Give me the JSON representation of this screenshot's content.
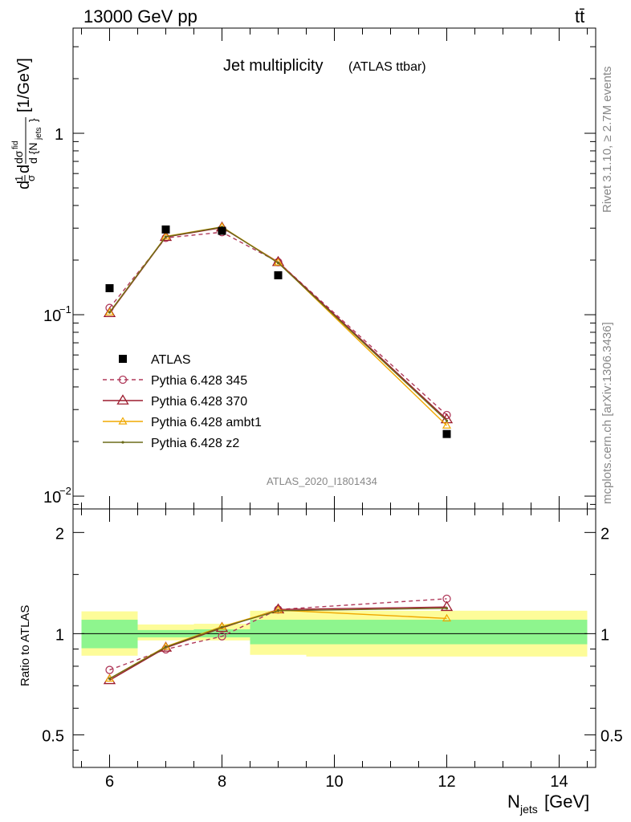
{
  "header": {
    "left": "13000 GeV pp",
    "right": "tt̄"
  },
  "side_labels": {
    "rivet": "Rivet 3.1.10, ≥ 2.7M events",
    "mcplots": "mcplots.cern.ch [arXiv:1306.3436]"
  },
  "chart_data": [
    {
      "type": "line",
      "title": "Jet multiplicity",
      "subtitle": "(ATLAS ttbar)",
      "ylabel": "dσ/d{N_jets} (1/σ) [1/GeV]",
      "analysis_tag": "ATLAS_2020_I1801434",
      "yscale": "log",
      "xlim": [
        5.35,
        14.65
      ],
      "ylim": [
        0.0085,
        3.8
      ],
      "yticks": [
        {
          "value": 0.01,
          "label": "10",
          "exp": "−2"
        },
        {
          "value": 0.1,
          "label": "10",
          "exp": "−1"
        },
        {
          "value": 1,
          "label": "1",
          "exp": ""
        }
      ],
      "legend_position": "middle-left",
      "data": {
        "name": "ATLAS",
        "x": [
          6,
          7,
          8,
          9,
          12
        ],
        "y": [
          0.14,
          0.295,
          0.29,
          0.165,
          0.022
        ],
        "color": "#000000"
      },
      "series": [
        {
          "name": "Pythia 6.428 345",
          "x": [
            6,
            7,
            8,
            9,
            12
          ],
          "y": [
            0.109,
            0.265,
            0.285,
            0.195,
            0.028
          ],
          "color": "#b03a5b",
          "marker": "circle",
          "dash": "5,4"
        },
        {
          "name": "Pythia 6.428 370",
          "x": [
            6,
            7,
            8,
            9,
            12
          ],
          "y": [
            0.102,
            0.268,
            0.302,
            0.195,
            0.0265
          ],
          "color": "#9c1c2e",
          "marker": "triangle",
          "dash": ""
        },
        {
          "name": "Pythia 6.428 ambt1",
          "x": [
            6,
            7,
            8,
            9,
            12
          ],
          "y": [
            0.103,
            0.27,
            0.305,
            0.194,
            0.0245
          ],
          "color": "#f0a800",
          "marker": "triangle-small",
          "dash": ""
        },
        {
          "name": "Pythia 6.428 z2",
          "x": [
            6,
            7,
            8,
            9,
            12
          ],
          "y": [
            0.103,
            0.269,
            0.304,
            0.193,
            0.026
          ],
          "color": "#6b6b1a",
          "marker": "dot",
          "dash": ""
        }
      ]
    },
    {
      "type": "line",
      "ylabel": "Ratio to ATLAS",
      "xlabel": "N_jets [GeV]",
      "xlim": [
        5.35,
        14.65
      ],
      "ylim": [
        0.4,
        2.35
      ],
      "yscale": "log",
      "xticks": [
        "6",
        "8",
        "10",
        "12",
        "14"
      ],
      "yticks": [
        "0.5",
        "1",
        "2"
      ],
      "bands": {
        "x_edges": [
          [
            5.5,
            6.5
          ],
          [
            6.5,
            7.5
          ],
          [
            7.5,
            8.5
          ],
          [
            8.5,
            9.5
          ],
          [
            9.5,
            14.5
          ]
        ],
        "stat_low": [
          0.905,
          0.975,
          0.975,
          0.93,
          0.93
        ],
        "stat_high": [
          1.1,
          1.025,
          1.03,
          1.1,
          1.1
        ],
        "total_low": [
          0.86,
          0.955,
          0.955,
          0.865,
          0.855
        ],
        "total_high": [
          1.165,
          1.065,
          1.07,
          1.17,
          1.17
        ],
        "stat_color": "#8ef58e",
        "total_color": "#fdfc99"
      },
      "series": [
        {
          "name": "Pythia 6.428 345",
          "x": [
            6,
            7,
            8,
            9,
            12
          ],
          "y": [
            0.78,
            0.898,
            0.982,
            1.18,
            1.27
          ],
          "color": "#b03a5b",
          "marker": "circle",
          "dash": "5,4"
        },
        {
          "name": "Pythia 6.428 370",
          "x": [
            6,
            7,
            8,
            9,
            12
          ],
          "y": [
            0.727,
            0.908,
            1.04,
            1.18,
            1.2
          ],
          "color": "#9c1c2e",
          "marker": "triangle",
          "dash": ""
        },
        {
          "name": "Pythia 6.428 ambt1",
          "x": [
            6,
            7,
            8,
            9,
            12
          ],
          "y": [
            0.735,
            0.915,
            1.05,
            1.175,
            1.11
          ],
          "color": "#f0a800",
          "marker": "triangle-small",
          "dash": ""
        },
        {
          "name": "Pythia 6.428 z2",
          "x": [
            6,
            7,
            8,
            9,
            12
          ],
          "y": [
            0.735,
            0.912,
            1.045,
            1.17,
            1.19
          ],
          "color": "#6b6b1a",
          "marker": "dot",
          "dash": ""
        }
      ]
    }
  ]
}
